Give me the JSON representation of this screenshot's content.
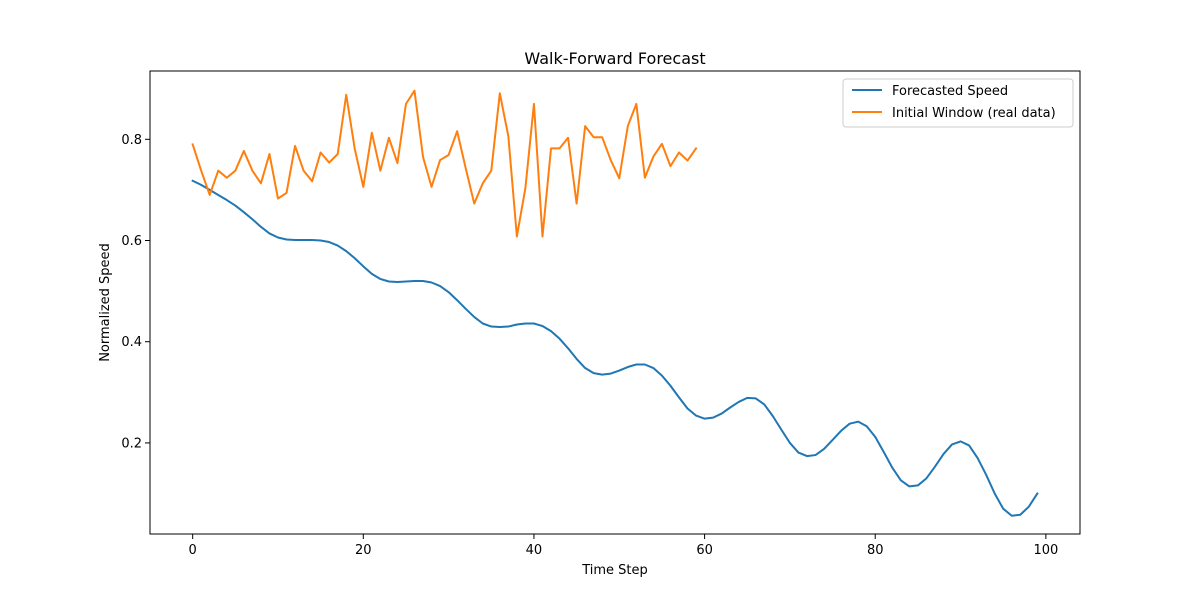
{
  "chart_data": {
    "type": "line",
    "title": "Walk-Forward Forecast",
    "xlabel": "Time Step",
    "ylabel": "Normalized Speed",
    "xlim": [
      -5,
      104
    ],
    "ylim": [
      0.02,
      0.935
    ],
    "xticks": [
      0,
      20,
      40,
      60,
      80,
      100
    ],
    "yticks": [
      0.2,
      0.4,
      0.6,
      0.8
    ],
    "xtick_labels": [
      "0",
      "20",
      "40",
      "60",
      "80",
      "100"
    ],
    "ytick_labels": [
      "0.2",
      "0.4",
      "0.6",
      "0.8"
    ],
    "grid": false,
    "legend_position": "top-right",
    "series": [
      {
        "name": "Forecasted Speed",
        "color": "#1f77b4",
        "x": [
          0,
          1,
          2,
          3,
          4,
          5,
          6,
          7,
          8,
          9,
          10,
          11,
          12,
          13,
          14,
          15,
          16,
          17,
          18,
          19,
          20,
          21,
          22,
          23,
          24,
          25,
          26,
          27,
          28,
          29,
          30,
          31,
          32,
          33,
          34,
          35,
          36,
          37,
          38,
          39,
          40,
          41,
          42,
          43,
          44,
          45,
          46,
          47,
          48,
          49,
          50,
          51,
          52,
          53,
          54,
          55,
          56,
          57,
          58,
          59,
          60,
          61,
          62,
          63,
          64,
          65,
          66,
          67,
          68,
          69,
          70,
          71,
          72,
          73,
          74,
          75,
          76,
          77,
          78,
          79,
          80,
          81,
          82,
          83,
          84,
          85,
          86,
          87,
          88,
          89,
          90,
          91,
          92,
          93,
          94,
          95,
          96,
          97,
          98,
          99
        ],
        "values": [
          0.718,
          0.71,
          0.7,
          0.69,
          0.68,
          0.669,
          0.656,
          0.642,
          0.627,
          0.614,
          0.606,
          0.602,
          0.601,
          0.601,
          0.601,
          0.6,
          0.597,
          0.59,
          0.579,
          0.565,
          0.549,
          0.534,
          0.524,
          0.519,
          0.518,
          0.519,
          0.52,
          0.52,
          0.517,
          0.51,
          0.498,
          0.482,
          0.465,
          0.449,
          0.436,
          0.43,
          0.429,
          0.43,
          0.434,
          0.436,
          0.436,
          0.431,
          0.421,
          0.406,
          0.387,
          0.366,
          0.348,
          0.338,
          0.335,
          0.337,
          0.343,
          0.35,
          0.355,
          0.355,
          0.348,
          0.333,
          0.313,
          0.29,
          0.268,
          0.254,
          0.248,
          0.25,
          0.258,
          0.27,
          0.281,
          0.289,
          0.288,
          0.276,
          0.253,
          0.226,
          0.2,
          0.181,
          0.174,
          0.176,
          0.188,
          0.206,
          0.224,
          0.238,
          0.242,
          0.233,
          0.212,
          0.182,
          0.151,
          0.126,
          0.114,
          0.116,
          0.13,
          0.153,
          0.178,
          0.197,
          0.203,
          0.195,
          0.17,
          0.137,
          0.1,
          0.07,
          0.056,
          0.058,
          0.074,
          0.1
        ]
      },
      {
        "name": "Initial Window (real data)",
        "color": "#ff7f0e",
        "x": [
          0,
          1,
          2,
          3,
          4,
          5,
          6,
          7,
          8,
          9,
          10,
          11,
          12,
          13,
          14,
          15,
          16,
          17,
          18,
          19,
          20,
          21,
          22,
          23,
          24,
          25,
          26,
          27,
          28,
          29,
          30,
          31,
          32,
          33,
          34,
          35,
          36,
          37,
          38,
          39,
          40,
          41,
          42,
          43,
          44,
          45,
          46,
          47,
          48,
          49,
          50,
          51,
          52,
          53,
          54,
          55,
          56,
          57,
          58,
          59
        ],
        "values": [
          0.79,
          0.738,
          0.69,
          0.738,
          0.724,
          0.738,
          0.777,
          0.738,
          0.713,
          0.771,
          0.683,
          0.694,
          0.787,
          0.738,
          0.717,
          0.774,
          0.754,
          0.771,
          0.888,
          0.781,
          0.706,
          0.813,
          0.738,
          0.803,
          0.753,
          0.87,
          0.896,
          0.765,
          0.706,
          0.759,
          0.769,
          0.816,
          0.743,
          0.673,
          0.713,
          0.738,
          0.891,
          0.806,
          0.608,
          0.704,
          0.87,
          0.608,
          0.782,
          0.782,
          0.803,
          0.673,
          0.826,
          0.804,
          0.804,
          0.759,
          0.723,
          0.826,
          0.87,
          0.724,
          0.766,
          0.791,
          0.747,
          0.774,
          0.758,
          0.782
        ]
      }
    ]
  }
}
